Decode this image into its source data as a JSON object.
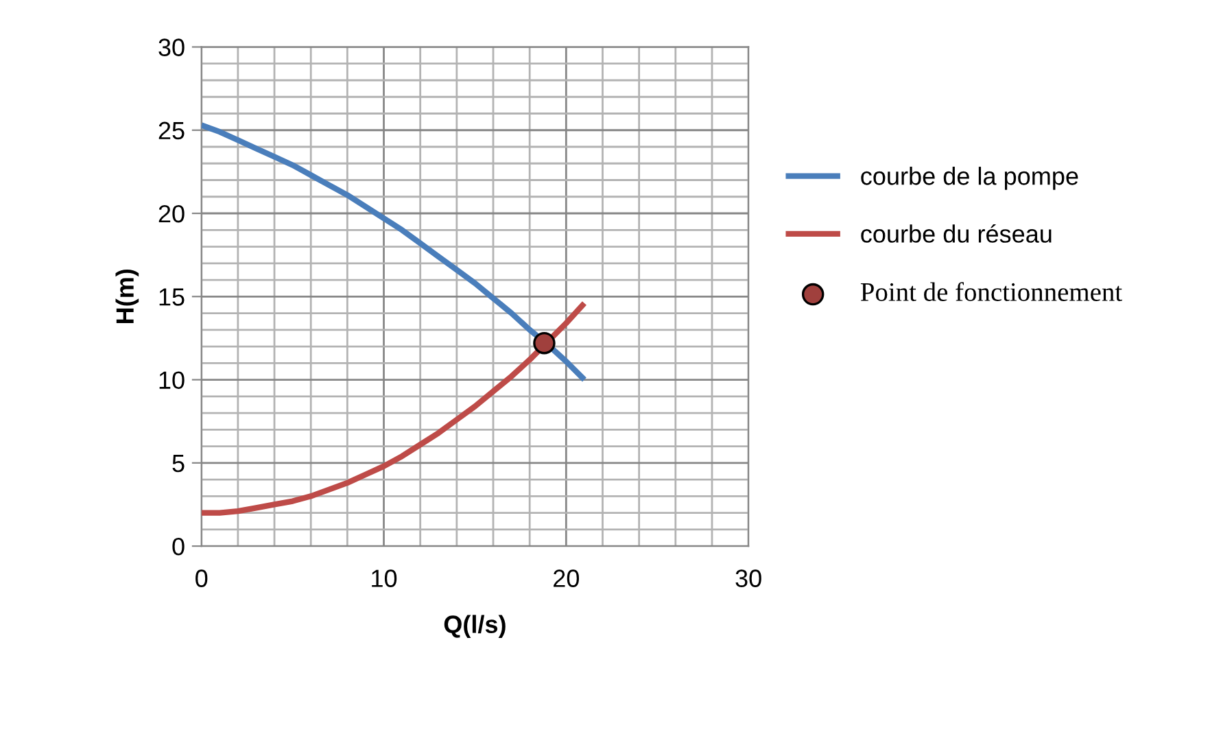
{
  "chart_data": {
    "type": "line",
    "xlabel": "Q(l/s)",
    "ylabel": "H(m)",
    "xlim": [
      0,
      30
    ],
    "xticks": [
      0,
      10,
      20,
      30
    ],
    "ylim": [
      0,
      30
    ],
    "yticks": [
      0,
      5,
      10,
      15,
      20,
      25,
      30
    ],
    "grid": true,
    "legend": "right",
    "marker": "none",
    "line_style": "solid",
    "series": [
      {
        "name": "courbe de la pompe",
        "color": "#4a7ebb",
        "x": [
          0,
          1,
          2,
          3,
          4,
          5,
          6,
          7,
          8,
          9,
          10,
          11,
          12,
          13,
          14,
          15,
          16,
          17,
          18,
          19,
          20,
          21
        ],
        "values": [
          25.3,
          24.9,
          24.4,
          23.9,
          23.4,
          22.9,
          22.3,
          21.7,
          21.1,
          20.4,
          19.7,
          19.0,
          18.2,
          17.4,
          16.6,
          15.8,
          14.9,
          14.0,
          13.0,
          12.1,
          11.1,
          10.0
        ]
      },
      {
        "name": "courbe du réseau",
        "color": "#be4b48",
        "x": [
          0,
          1,
          2,
          3,
          4,
          5,
          6,
          7,
          8,
          9,
          10,
          11,
          12,
          13,
          14,
          15,
          16,
          17,
          18,
          19,
          20,
          21
        ],
        "values": [
          2.0,
          2.0,
          2.1,
          2.3,
          2.5,
          2.7,
          3.0,
          3.4,
          3.8,
          4.3,
          4.8,
          5.4,
          6.1,
          6.8,
          7.6,
          8.4,
          9.3,
          10.2,
          11.2,
          12.3,
          13.4,
          14.6
        ]
      },
      {
        "name": "Point de fonctionnement",
        "type": "scatter",
        "marker": "circle",
        "color": "#a0403d",
        "x": [
          18.8
        ],
        "values": [
          12.2
        ]
      }
    ]
  }
}
